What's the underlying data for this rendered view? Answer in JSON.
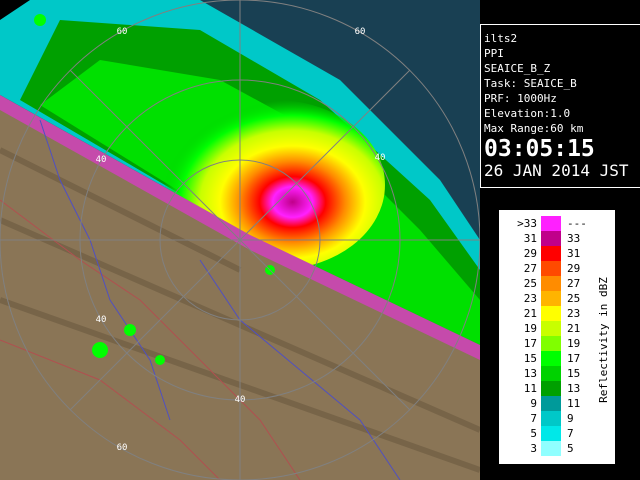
{
  "info": {
    "lines": [
      "ilts2",
      "PPI",
      "SEAICE_B_Z",
      "Task: SEAICE_B",
      "PRF: 1000Hz",
      "Elevation:1.0",
      "Max Range:60 km"
    ],
    "time": "03:05:15",
    "date": "26 JAN 2014 JST"
  },
  "legend": {
    "title": "Reflectivity in dBZ",
    "rows": [
      {
        "low": ">33",
        "high": "---",
        "color": "#ff20ff"
      },
      {
        "low": "31",
        "high": "33",
        "color": "#c0008a"
      },
      {
        "low": "29",
        "high": "31",
        "color": "#ff0000"
      },
      {
        "low": "27",
        "high": "29",
        "color": "#ff4a00"
      },
      {
        "low": "25",
        "high": "27",
        "color": "#ff8c00"
      },
      {
        "low": "23",
        "high": "25",
        "color": "#ffb400"
      },
      {
        "low": "21",
        "high": "23",
        "color": "#ffff00"
      },
      {
        "low": "19",
        "high": "21",
        "color": "#c8ff00"
      },
      {
        "low": "17",
        "high": "19",
        "color": "#80ff00"
      },
      {
        "low": "15",
        "high": "17",
        "color": "#00ff00"
      },
      {
        "low": "13",
        "high": "15",
        "color": "#00d200"
      },
      {
        "low": "11",
        "high": "13",
        "color": "#00a000"
      },
      {
        "low": "9",
        "high": "11",
        "color": "#009a9a"
      },
      {
        "low": "7",
        "high": "9",
        "color": "#00c8c8"
      },
      {
        "low": "5",
        "high": "7",
        "color": "#00e8e8"
      },
      {
        "low": "3",
        "high": "5",
        "color": "#90ffff"
      }
    ]
  },
  "range_labels": [
    {
      "text": "60",
      "pos": "nw"
    },
    {
      "text": "60",
      "pos": "ne"
    },
    {
      "text": "40",
      "pos": "wnw"
    },
    {
      "text": "40",
      "pos": "ene"
    },
    {
      "text": "40",
      "pos": "wsw"
    },
    {
      "text": "40",
      "pos": "s"
    },
    {
      "text": "60",
      "pos": "sw"
    }
  ]
}
